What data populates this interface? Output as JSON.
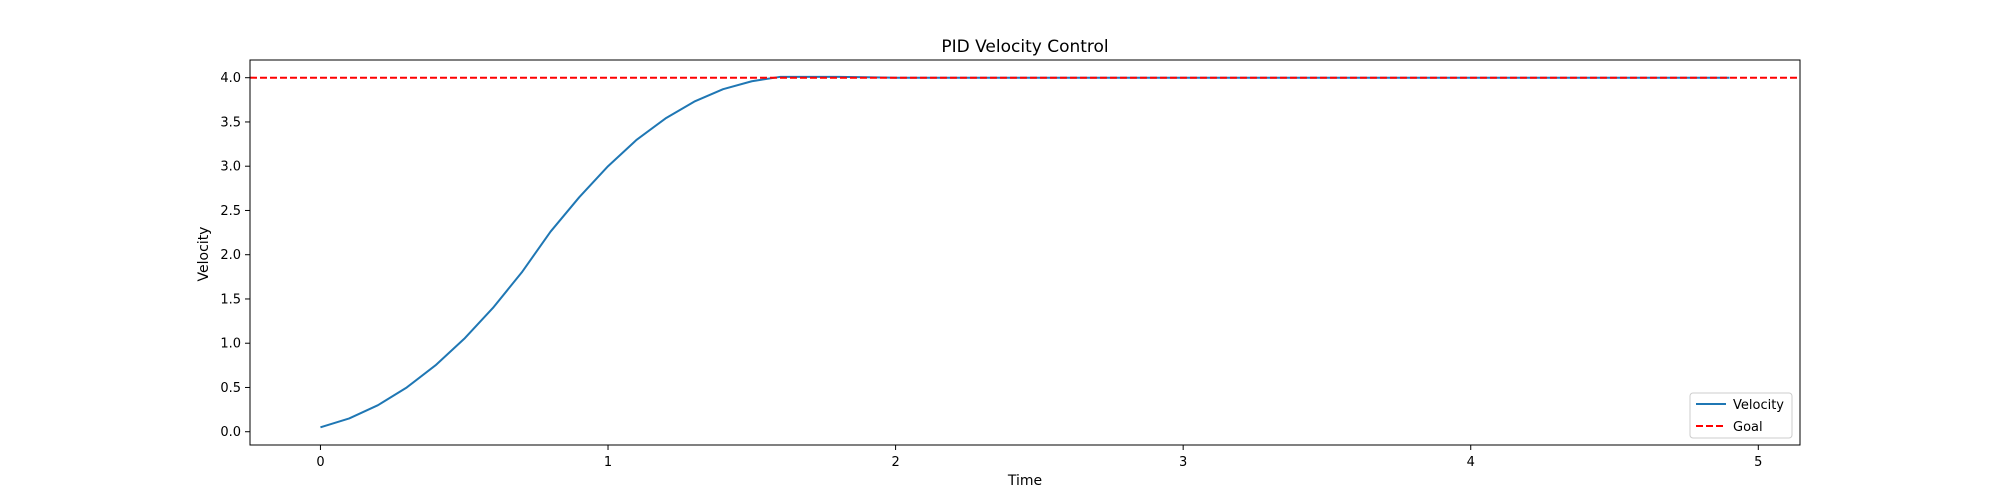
{
  "chart_data": {
    "type": "line",
    "title": "PID Velocity Control",
    "xlabel": "Time",
    "ylabel": "Velocity",
    "xlim": [
      -0.245,
      5.145
    ],
    "ylim": [
      -0.15,
      4.2
    ],
    "xticks": [
      0,
      1,
      2,
      3,
      4,
      5
    ],
    "xtick_labels": [
      "0",
      "1",
      "2",
      "3",
      "4",
      "5"
    ],
    "yticks": [
      0.0,
      0.5,
      1.0,
      1.5,
      2.0,
      2.5,
      3.0,
      3.5,
      4.0
    ],
    "ytick_labels": [
      "0.0",
      "0.5",
      "1.0",
      "1.5",
      "2.0",
      "2.5",
      "3.0",
      "3.5",
      "4.0"
    ],
    "grid": false,
    "legend_position": "lower-right",
    "series": [
      {
        "name": "Velocity",
        "color": "#1f77b4",
        "style": "solid",
        "x": [
          0,
          0.1,
          0.2,
          0.3,
          0.4,
          0.5,
          0.6,
          0.7,
          0.8,
          0.9,
          1.0,
          1.1,
          1.2,
          1.3,
          1.4,
          1.5,
          1.6,
          1.7,
          1.8,
          1.9,
          2.0,
          2.1,
          2.2,
          2.3,
          2.4,
          2.5,
          2.6,
          2.7,
          2.8,
          2.9,
          3.0,
          3.1,
          3.2,
          3.3,
          3.4,
          3.5,
          3.6,
          3.7,
          3.8,
          3.9,
          4.0,
          4.1,
          4.2,
          4.3,
          4.4,
          4.5,
          4.6,
          4.7,
          4.8,
          4.9
        ],
        "y": [
          0.05,
          0.15,
          0.3,
          0.5,
          0.75,
          1.05,
          1.4,
          1.8,
          2.26,
          2.65,
          3.0,
          3.3,
          3.54,
          3.73,
          3.87,
          3.96,
          4.01,
          4.01,
          4.01,
          4.005,
          4.0,
          4.0,
          4.0,
          4.0,
          4.0,
          4.0,
          4.0,
          4.0,
          4.0,
          4.0,
          4.0,
          4.0,
          4.0,
          4.0,
          4.0,
          4.0,
          4.0,
          4.0,
          4.0,
          4.0,
          4.0,
          4.0,
          4.0,
          4.0,
          4.0,
          4.0,
          4.0,
          4.0,
          4.0,
          4.0
        ]
      },
      {
        "name": "Goal",
        "color": "#ff0000",
        "style": "dashed",
        "type": "hline",
        "y": 4.0
      }
    ]
  }
}
